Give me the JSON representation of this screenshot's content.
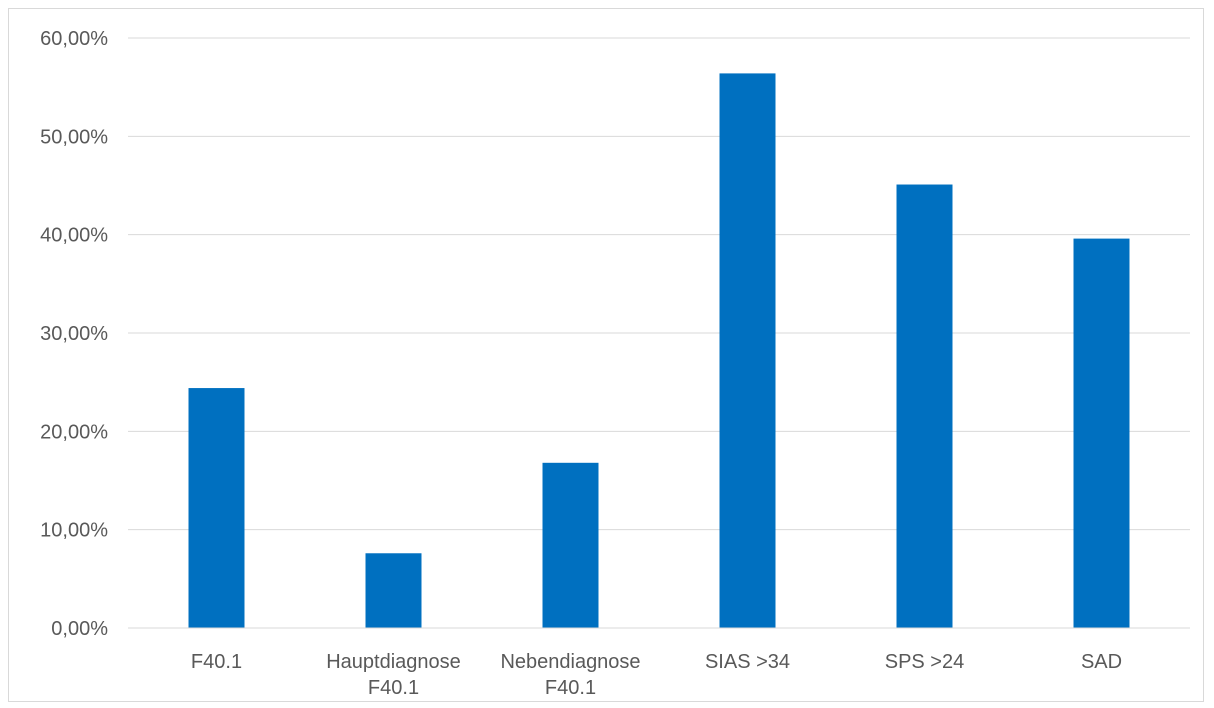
{
  "chart_data": {
    "type": "bar",
    "categories": [
      [
        "F40.1"
      ],
      [
        "Hauptdiagnose",
        "F40.1"
      ],
      [
        "Nebendiagnose",
        "F40.1"
      ],
      [
        "SIAS >34"
      ],
      [
        "SPS >24"
      ],
      [
        "SAD"
      ]
    ],
    "values": [
      0.244,
      0.076,
      0.168,
      0.564,
      0.451,
      0.396
    ],
    "ylim": [
      0,
      0.6
    ],
    "yticks": [
      0,
      0.1,
      0.2,
      0.3,
      0.4,
      0.5,
      0.6
    ],
    "ytick_labels": [
      "0,00%",
      "10,00%",
      "20,00%",
      "30,00%",
      "40,00%",
      "50,00%",
      "60,00%"
    ],
    "grid": true,
    "legend": "none",
    "colors": {
      "bar": "#0070c0",
      "grid": "#d9d9d9",
      "axis": "#d9d9d9",
      "text": "#595959"
    }
  }
}
